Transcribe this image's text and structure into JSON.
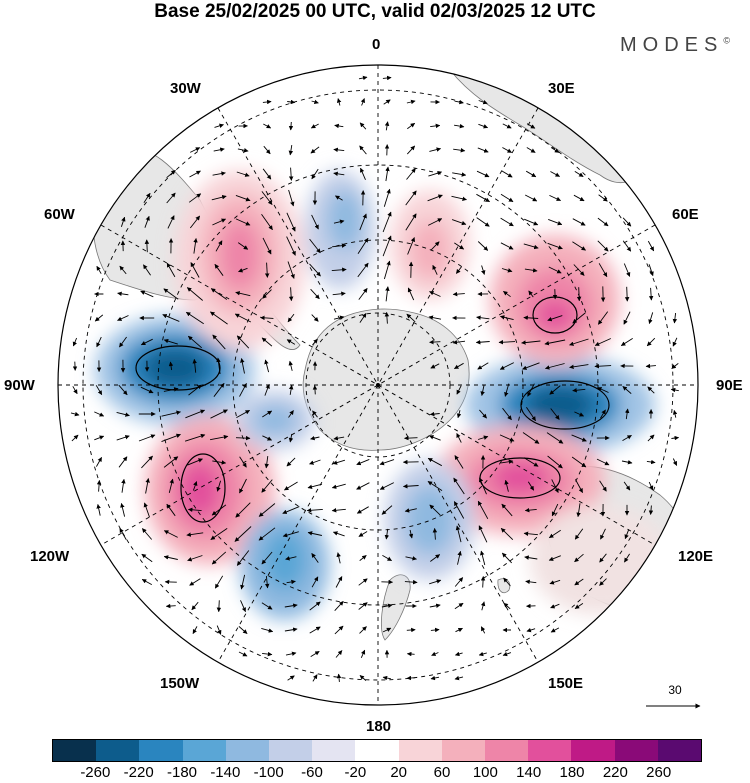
{
  "title": "Base 25/02/2025 00 UTC, valid 02/03/2025 12 UTC",
  "brand": "MODES",
  "brand_mark": "©",
  "longitude_labels": {
    "top": "0",
    "top_left": "30W",
    "top_right": "30E",
    "upper_left": "60W",
    "upper_right": "60E",
    "left": "90W",
    "right": "90E",
    "lower_left": "120W",
    "lower_right": "120E",
    "bottom_left": "150W",
    "bottom_right": "150E",
    "bottom": "180"
  },
  "reference_vector": "30",
  "colorbar": {
    "ticks": [
      "-260",
      "-220",
      "-180",
      "-140",
      "-100",
      "-60",
      "-20",
      "20",
      "60",
      "100",
      "140",
      "180",
      "220",
      "260"
    ],
    "colors": [
      "#08304d",
      "#0d5c8c",
      "#2a85bf",
      "#5aa6d6",
      "#8fb9e0",
      "#c3cfe8",
      "#e4e4f2",
      "#ffffff",
      "#f8d4d8",
      "#f4b0bc",
      "#ee85a8",
      "#e2509c",
      "#bf1a86",
      "#8a0a78",
      "#5a0a70"
    ]
  },
  "anomalies": [
    {
      "name": "90W-low",
      "sign": "negative",
      "level": -220
    },
    {
      "name": "90E-low",
      "sign": "negative",
      "level": -220
    },
    {
      "name": "120W-high",
      "sign": "positive",
      "level": 180
    },
    {
      "name": "60E-high",
      "sign": "positive",
      "level": 180
    },
    {
      "name": "120E-high",
      "sign": "positive",
      "level": 180
    },
    {
      "name": "30W-high",
      "sign": "positive",
      "level": 140
    },
    {
      "name": "150W-low",
      "sign": "negative",
      "level": -140
    },
    {
      "name": "180-low",
      "sign": "negative",
      "level": -100
    },
    {
      "name": "15W-low",
      "sign": "negative",
      "level": -100
    },
    {
      "name": "30E-high",
      "sign": "positive",
      "level": 100
    }
  ]
}
